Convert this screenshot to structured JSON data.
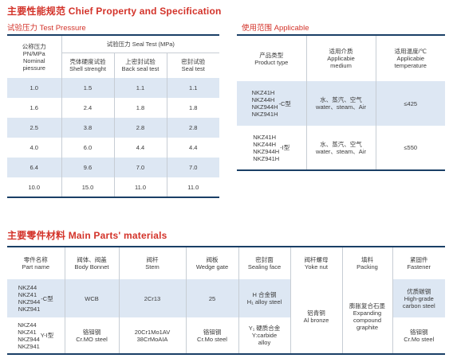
{
  "title_property": "主要性能规范 Chief Property and Specification",
  "title_parts": "主要零件材料 Main Parts' materials",
  "test_pressure": {
    "subtitle": "试验压力 Test Pressure",
    "col_nominal": [
      "公称压力",
      "PN/MPa",
      "Nominal",
      "piessure"
    ],
    "col_seal_test": "试验压力 Seal Test (MPa)",
    "col_shell": [
      "壳体硬度试验",
      "Shell strenght"
    ],
    "col_back": [
      "上密封试验",
      "Back seal test"
    ],
    "col_seal": [
      "密封试验",
      "Seal test"
    ],
    "rows": [
      [
        "1.0",
        "1.5",
        "1.1",
        "1.1"
      ],
      [
        "1.6",
        "2.4",
        "1.8",
        "1.8"
      ],
      [
        "2.5",
        "3.8",
        "2.8",
        "2.8"
      ],
      [
        "4.0",
        "6.0",
        "4.4",
        "4.4"
      ],
      [
        "6.4",
        "9.6",
        "7.0",
        "7.0"
      ],
      [
        "10.0",
        "15.0",
        "11.0",
        "11.0"
      ]
    ]
  },
  "applicable": {
    "subtitle": "使用范围 Applicable",
    "col_product": [
      "产品类型",
      "Product type"
    ],
    "col_medium": [
      "适用介质",
      "Applicabie",
      "medium"
    ],
    "col_temp": [
      "适用温度/℃",
      "Applicabie",
      "temperature"
    ],
    "rows": [
      {
        "models": [
          "NKZ41H",
          "NKZ44H",
          "NKZ944H",
          "NKZ941H"
        ],
        "suffix": "-C型",
        "medium": [
          "水、蒸汽、空气",
          "water、steam、Air"
        ],
        "temp": "≤425"
      },
      {
        "models": [
          "NKZ41H",
          "NKZ44H",
          "NKZ944H",
          "NKZ941H"
        ],
        "suffix": "-I型",
        "medium": [
          "水、蒸汽、空气",
          "water、steam、Air"
        ],
        "temp": "≤550"
      }
    ]
  },
  "parts": {
    "headers": [
      [
        "零件名称",
        "Part name"
      ],
      [
        "阀体、阀盖",
        "Body Bonnet"
      ],
      [
        "阀杆",
        "Stem"
      ],
      [
        "阀板",
        "Wedge gate"
      ],
      [
        "密封面",
        "Sealing face"
      ],
      [
        "阀杆螺母",
        "Yoke nut"
      ],
      [
        "填料",
        "Packing"
      ],
      [
        "紧固件",
        "Fastener"
      ]
    ],
    "row1": {
      "models": [
        "NKZ44",
        "NKZ41",
        "NKZ944",
        "NKZ941"
      ],
      "suffix": "-C型",
      "body": "WCB",
      "stem": "2Cr13",
      "wedge": "25",
      "sealing": [
        "H 合金钢",
        "H₁ alloy steel"
      ],
      "fastener": [
        "优质碳钢",
        "High-grade",
        "carbon steel"
      ]
    },
    "row2": {
      "models": [
        "NKZ44",
        "NKZ41",
        "NKZ944",
        "NKZ941"
      ],
      "suffix": "Y-I型",
      "body": [
        "铬钼钢",
        "Cr.MO steel"
      ],
      "stem": [
        "20Cr1Mo1AV",
        "38CrMoAIA"
      ],
      "wedge": [
        "铬钼钢",
        "Cr.Mo steel"
      ],
      "sealing": [
        "Y₁ 硬质合金",
        "Y:carbide",
        "alloy"
      ],
      "fastener": [
        "铬钼钢",
        "Cr.Mo steel"
      ]
    },
    "yoke": [
      "铝青铜",
      "Al bronze"
    ],
    "packing": [
      "膨胀复合石墨",
      "Expanding",
      "compound",
      "graphite"
    ]
  }
}
